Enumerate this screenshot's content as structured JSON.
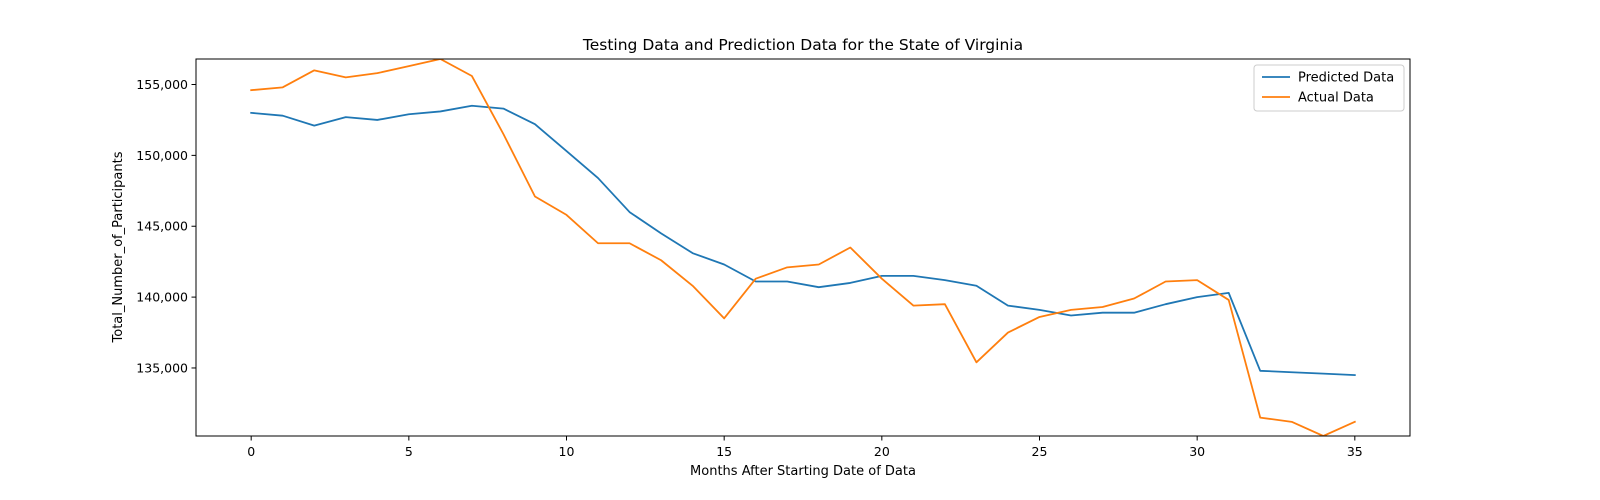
{
  "chart_data": {
    "type": "line",
    "title": "Testing Data and Prediction Data for the State of Virginia",
    "xlabel": "Months After Starting Date of Data",
    "ylabel": "Total_Number_of_Participants",
    "xlim": [
      -1.75,
      36.75
    ],
    "ylim": [
      130200,
      156800
    ],
    "x_ticks": [
      0,
      5,
      10,
      15,
      20,
      25,
      30,
      35
    ],
    "y_ticks": [
      135000,
      140000,
      145000,
      150000,
      155000
    ],
    "x_tick_labels": [
      "0",
      "5",
      "10",
      "15",
      "20",
      "25",
      "30",
      "35"
    ],
    "y_tick_labels": [
      "135,000",
      "140,000",
      "145,000",
      "150,000",
      "155,000"
    ],
    "grid": false,
    "legend_position": "top-right",
    "x": [
      0,
      1,
      2,
      3,
      4,
      5,
      6,
      7,
      8,
      9,
      10,
      11,
      12,
      13,
      14,
      15,
      16,
      17,
      18,
      19,
      20,
      21,
      22,
      23,
      24,
      25,
      26,
      27,
      28,
      29,
      30,
      31,
      32,
      33,
      34,
      35
    ],
    "series": [
      {
        "name": "Predicted Data",
        "color": "#1f77b4",
        "values": [
          153000,
          152800,
          152100,
          152700,
          152500,
          152900,
          153100,
          153500,
          153300,
          152200,
          150300,
          148400,
          146000,
          144500,
          143100,
          142300,
          141100,
          141100,
          140700,
          141000,
          141500,
          141500,
          141200,
          140800,
          139400,
          139100,
          138700,
          138900,
          138900,
          139500,
          140000,
          140300,
          134800,
          134700,
          134600,
          134500
        ]
      },
      {
        "name": "Actual Data",
        "color": "#ff7f0e",
        "values": [
          154600,
          154800,
          156000,
          155500,
          155800,
          156300,
          156800,
          155600,
          151500,
          147100,
          145800,
          143800,
          143800,
          142600,
          140800,
          138500,
          141300,
          142100,
          142300,
          143500,
          141300,
          139400,
          139500,
          135400,
          137500,
          138600,
          139100,
          139300,
          139900,
          141100,
          141200,
          139800,
          131500,
          131200,
          130200,
          131200
        ]
      }
    ]
  }
}
